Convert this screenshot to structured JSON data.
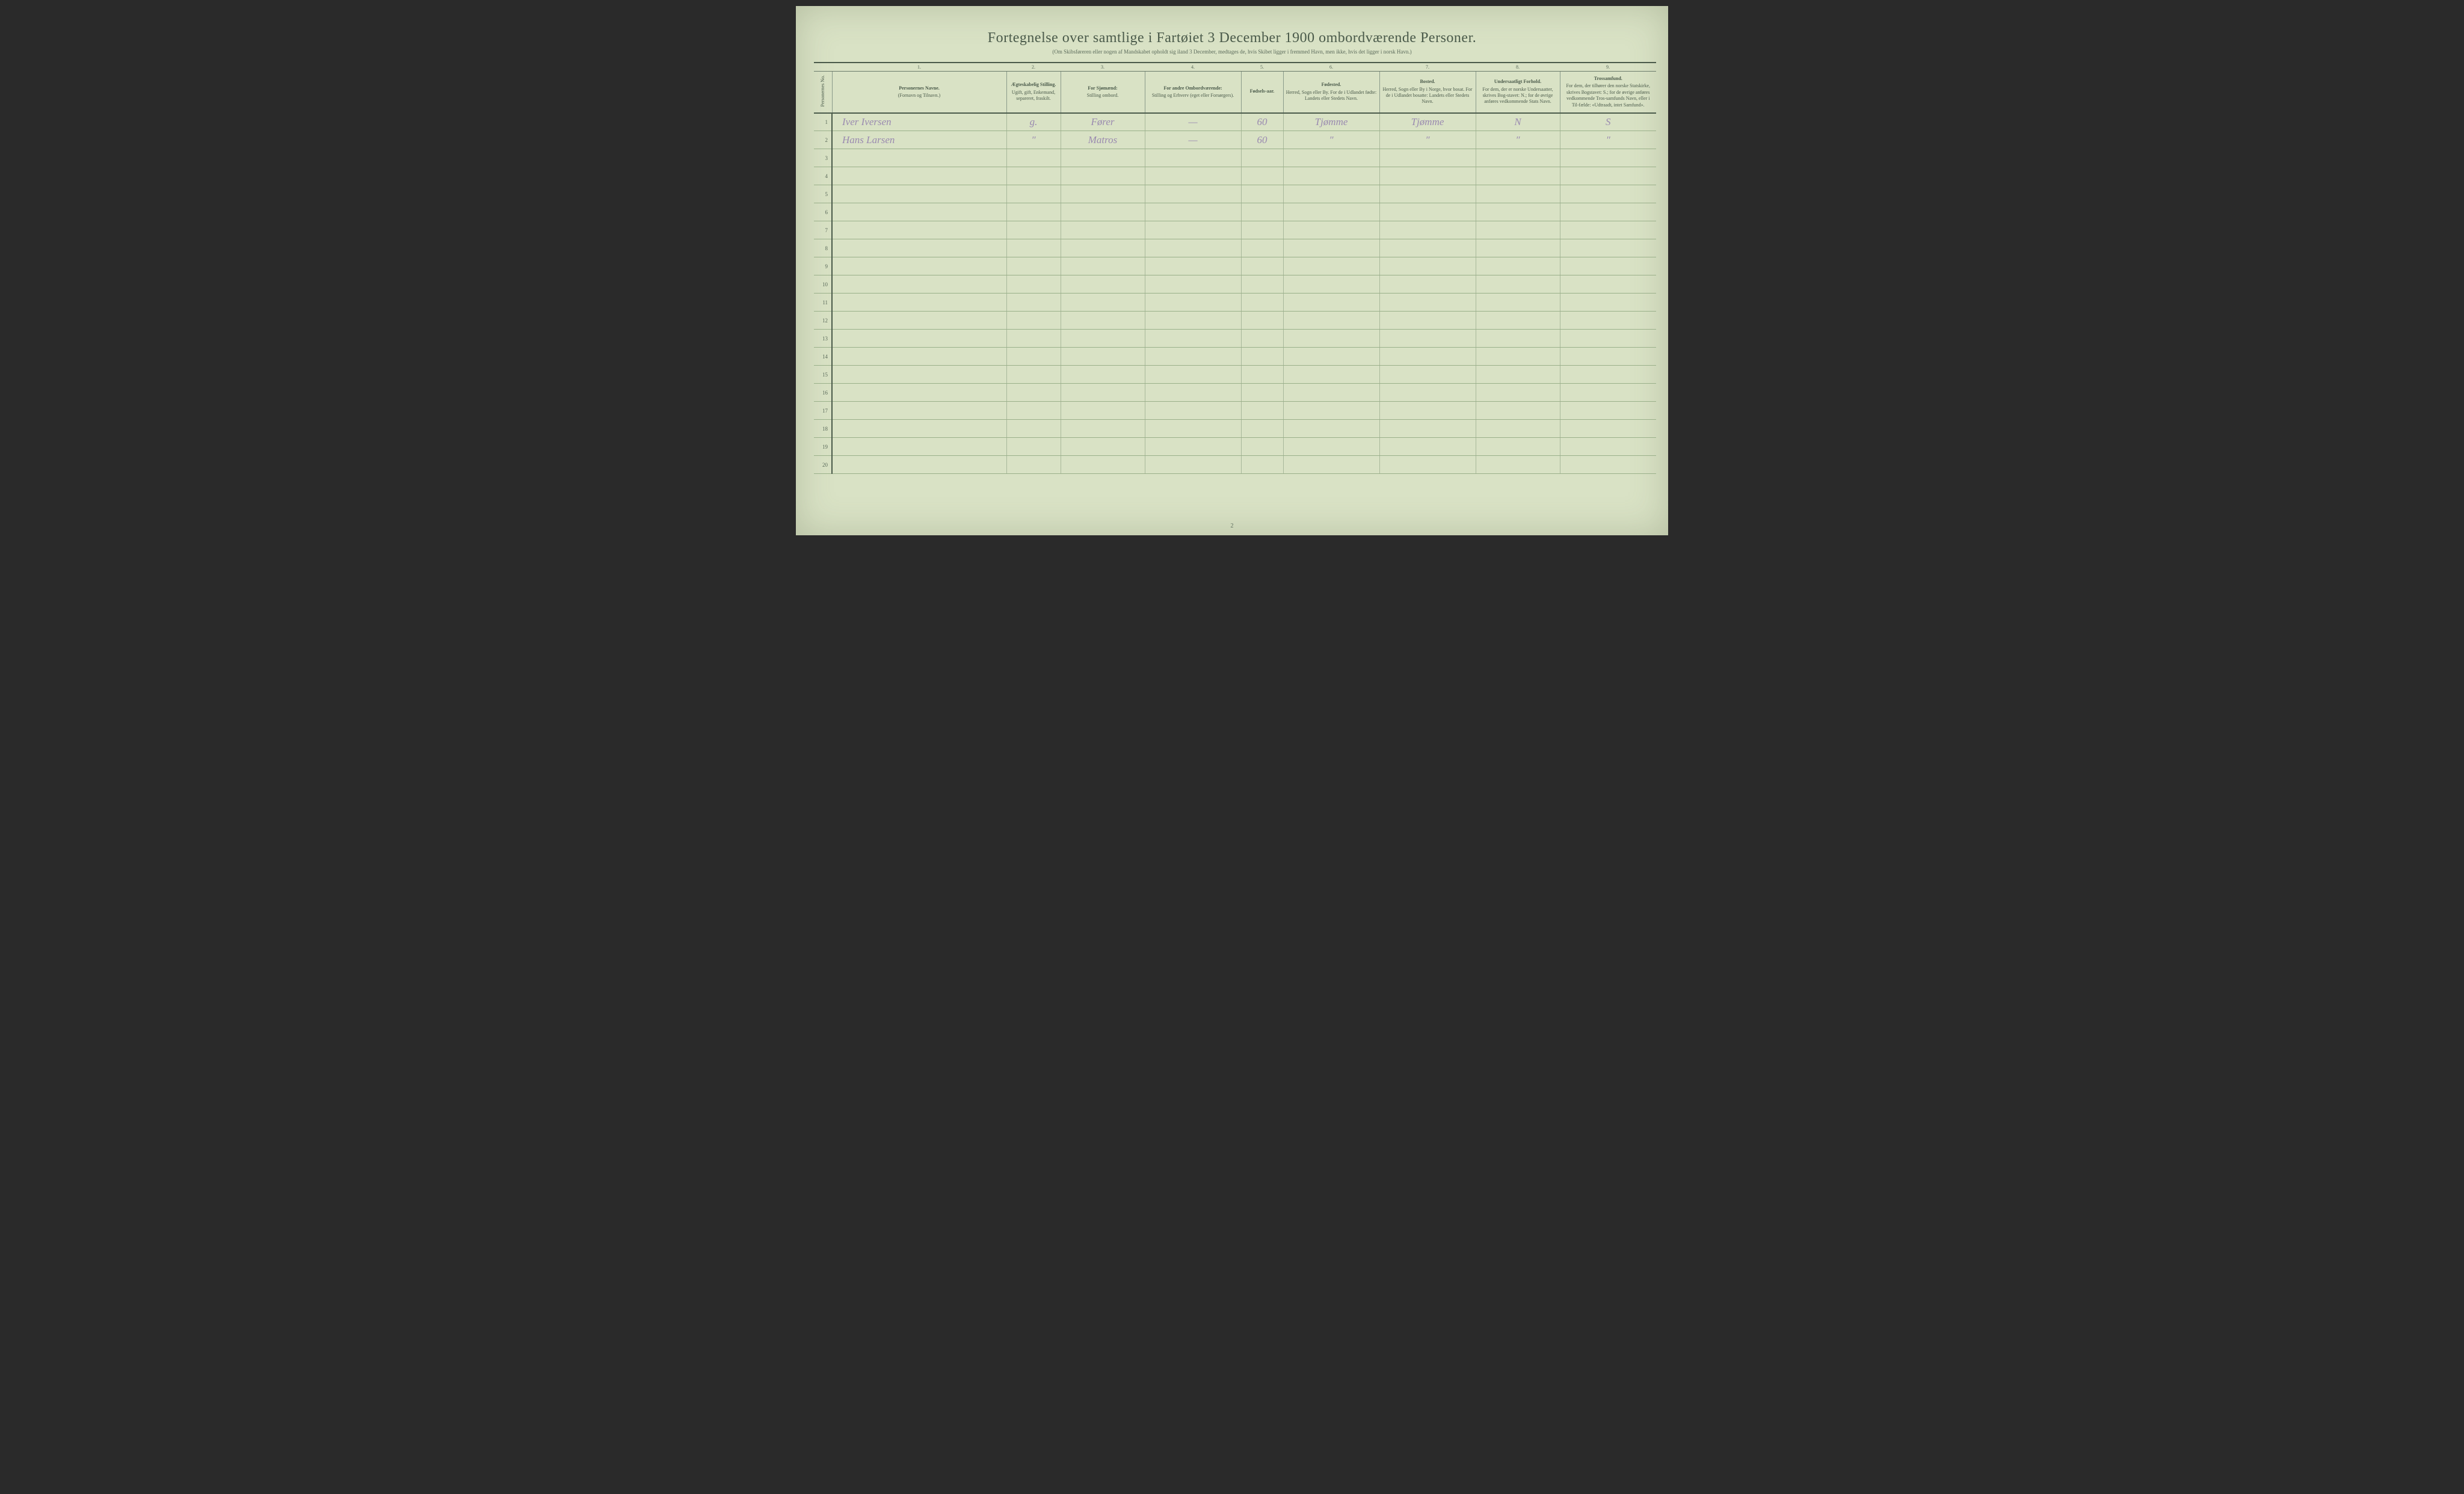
{
  "document": {
    "title": "Fortegnelse over samtlige i Fartøiet 3 December 1900 ombordværende Personer.",
    "subtitle": "(Om Skibsføreren eller nogen af Mandskabet opholdt sig iland 3 December, medtages de, hvis Skibet ligger i fremmed Havn, men ikke, hvis det ligger i norsk Havn.)",
    "page_number": "2",
    "background_color": "#d9e2c5",
    "ink_color": "#4a5a4a",
    "handwriting_color": "#9a8ab0",
    "rule_color": "#9ab08a"
  },
  "columns": {
    "numbers": [
      "",
      "1.",
      "2.",
      "3.",
      "4.",
      "5.",
      "6.",
      "7.",
      "8.",
      "9."
    ],
    "headers": [
      {
        "main": "Personernes No."
      },
      {
        "main": "Personernes Navne.",
        "sub": "(Fornavn og Tilnavn.)"
      },
      {
        "main": "Ægteskabelig Stilling.",
        "sub": "Ugift, gift, Enkemand, separeret, fraskilt."
      },
      {
        "main": "For Sjømænd:",
        "sub": "Stilling ombord."
      },
      {
        "main": "For andre Ombordværende:",
        "sub": "Stilling og Erhverv (eget eller Forsørgers)."
      },
      {
        "main": "Fødsels-aar."
      },
      {
        "main": "Fødested.",
        "sub": "Herred, Sogn eller By. For de i Udlandet fødte: Landets eller Stedets Navn."
      },
      {
        "main": "Bosted.",
        "sub": "Herred, Sogn eller By i Norge, hvor bosat. For de i Udlandet bosatte: Landets eller Stedets Navn."
      },
      {
        "main": "Undersaatligt Forhold.",
        "sub": "For dem, der er norske Undersaatter, skrives Bog-stavet: N.; for de øvrige anføres vedkommende Stats Navn."
      },
      {
        "main": "Trossamfund.",
        "sub": "For dem, der tilhører den norske Statskirke, skrives Bogstavet: S.; for de øvrige anføres vedkommende Tros-samfunds Navn, eller i Til-fælde: «Udtraadt, intet Samfund»."
      }
    ]
  },
  "rows": [
    {
      "num": "1",
      "name": "Iver Iversen",
      "marital": "g.",
      "seaman": "Fører",
      "other": "—",
      "year": "60",
      "birthplace": "Tjømme",
      "residence": "Tjømme",
      "subject": "N",
      "faith": "S"
    },
    {
      "num": "2",
      "name": "Hans Larsen",
      "marital": "″",
      "seaman": "Matros",
      "other": "—",
      "year": "60",
      "birthplace": "″",
      "residence": "″",
      "subject": "″",
      "faith": "″"
    },
    {
      "num": "3"
    },
    {
      "num": "4"
    },
    {
      "num": "5"
    },
    {
      "num": "6"
    },
    {
      "num": "7"
    },
    {
      "num": "8"
    },
    {
      "num": "9"
    },
    {
      "num": "10"
    },
    {
      "num": "11"
    },
    {
      "num": "12"
    },
    {
      "num": "13"
    },
    {
      "num": "14"
    },
    {
      "num": "15"
    },
    {
      "num": "16"
    },
    {
      "num": "17"
    },
    {
      "num": "18"
    },
    {
      "num": "19"
    },
    {
      "num": "20"
    }
  ]
}
